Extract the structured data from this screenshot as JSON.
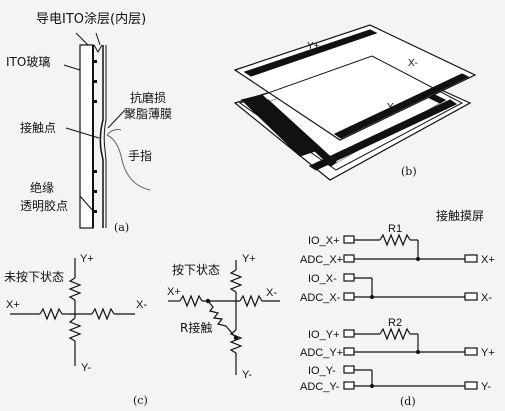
{
  "panel_a": {
    "top_label": "导电ITO涂层(内层)",
    "glass_label": "ITO玻璃",
    "film_label_1": "抗磨损",
    "film_label_2": "聚脂薄膜",
    "contact_label": "接触点",
    "finger_label": "手指",
    "insulator_label_1": "绝缘",
    "insulator_label_2": "透明胶点",
    "caption": "(a)"
  },
  "panel_b": {
    "top_layer_y_plus": "Y+",
    "top_layer_x_minus": "X-",
    "bottom_layer_y_minus": "Y-",
    "bottom_layer_x_plus": "X+",
    "caption": "(b)"
  },
  "panel_c": {
    "left_state": "未按下状态",
    "right_state": "按下状态",
    "left_y_plus": "Y+",
    "left_y_minus": "Y-",
    "left_x_plus": "X+",
    "left_x_minus": "X-",
    "right_y_plus": "Y+",
    "right_y_minus": "Y-",
    "right_x_plus": "X+",
    "right_x_minus": "X-",
    "contact_resistor": "R接触",
    "caption": "(c)"
  },
  "panel_d": {
    "title": "接触摸屏",
    "io_x_plus": "IO_X+",
    "adc_x_plus": "ADC_X+",
    "r1": "R1",
    "out_x_plus": "X+",
    "io_x_minus": "IO_X-",
    "adc_x_minus": "ADC_X-",
    "out_x_minus": "X-",
    "io_y_plus": "IO_Y+",
    "adc_y_plus": "ADC_Y+",
    "r2": "R2",
    "out_y_plus": "Y+",
    "io_y_minus": "IO_Y-",
    "adc_y_minus": "ADC_Y-",
    "out_y_minus": "Y-",
    "caption": "(d)"
  }
}
